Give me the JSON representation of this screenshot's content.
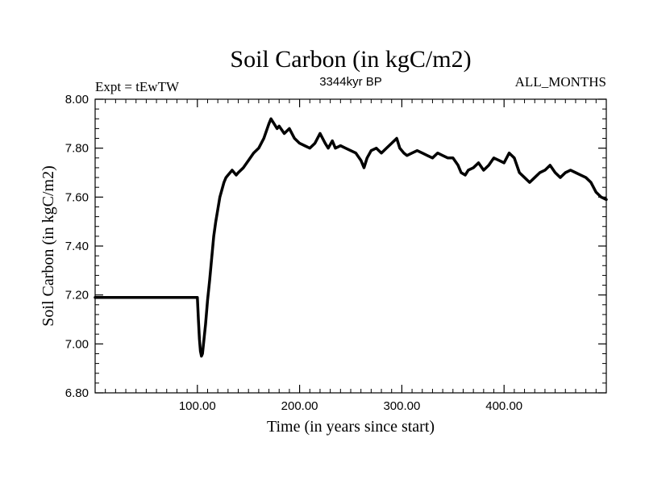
{
  "chart_data": {
    "type": "line",
    "title": "Soil Carbon (in kgC/m2)",
    "subtitle_left": "Expt = tEwTW",
    "subtitle_center": "3344kyr BP",
    "subtitle_right": "ALL_MONTHS",
    "xlabel": "Time (in years since start)",
    "ylabel": "Soil Carbon (in kgC/m2)",
    "xlim": [
      0,
      500
    ],
    "ylim": [
      6.8,
      8.0
    ],
    "x_ticks": [
      {
        "value": 100,
        "label": "100.00"
      },
      {
        "value": 200,
        "label": "200.00"
      },
      {
        "value": 300,
        "label": "300.00"
      },
      {
        "value": 400,
        "label": "400.00"
      }
    ],
    "y_ticks": [
      {
        "value": 6.8,
        "label": "6.80"
      },
      {
        "value": 7.0,
        "label": "7.00"
      },
      {
        "value": 7.2,
        "label": "7.20"
      },
      {
        "value": 7.4,
        "label": "7.40"
      },
      {
        "value": 7.6,
        "label": "7.60"
      },
      {
        "value": 7.8,
        "label": "7.80"
      },
      {
        "value": 8.0,
        "label": "8.00"
      }
    ],
    "series": [
      {
        "name": "Soil Carbon",
        "color": "#000000",
        "x": [
          0,
          99,
          100,
          101,
          102,
          103,
          104,
          105,
          106,
          108,
          110,
          112,
          114,
          116,
          118,
          120,
          122,
          124,
          126,
          128,
          130,
          132,
          134,
          136,
          138,
          140,
          145,
          150,
          155,
          160,
          165,
          170,
          172,
          175,
          178,
          180,
          185,
          190,
          195,
          200,
          205,
          210,
          215,
          220,
          225,
          228,
          232,
          235,
          240,
          245,
          250,
          255,
          260,
          263,
          266,
          270,
          275,
          280,
          285,
          290,
          295,
          298,
          302,
          305,
          310,
          315,
          320,
          325,
          330,
          335,
          340,
          345,
          350,
          355,
          358,
          362,
          365,
          370,
          375,
          380,
          385,
          390,
          395,
          400,
          405,
          410,
          415,
          420,
          425,
          430,
          435,
          440,
          445,
          450,
          455,
          460,
          465,
          470,
          475,
          480,
          485,
          490,
          495,
          500
        ],
        "values": [
          7.19,
          7.19,
          7.19,
          7.1,
          7.02,
          6.97,
          6.95,
          6.96,
          7.0,
          7.08,
          7.18,
          7.26,
          7.35,
          7.44,
          7.5,
          7.55,
          7.6,
          7.63,
          7.66,
          7.68,
          7.69,
          7.7,
          7.71,
          7.7,
          7.69,
          7.7,
          7.72,
          7.75,
          7.78,
          7.8,
          7.84,
          7.9,
          7.92,
          7.9,
          7.88,
          7.89,
          7.86,
          7.88,
          7.84,
          7.82,
          7.81,
          7.8,
          7.82,
          7.86,
          7.82,
          7.8,
          7.83,
          7.8,
          7.81,
          7.8,
          7.79,
          7.78,
          7.75,
          7.72,
          7.76,
          7.79,
          7.8,
          7.78,
          7.8,
          7.82,
          7.84,
          7.8,
          7.78,
          7.77,
          7.78,
          7.79,
          7.78,
          7.77,
          7.76,
          7.78,
          7.77,
          7.76,
          7.76,
          7.73,
          7.7,
          7.69,
          7.71,
          7.72,
          7.74,
          7.71,
          7.73,
          7.76,
          7.75,
          7.74,
          7.78,
          7.76,
          7.7,
          7.68,
          7.66,
          7.68,
          7.7,
          7.71,
          7.73,
          7.7,
          7.68,
          7.7,
          7.71,
          7.7,
          7.69,
          7.68,
          7.66,
          7.62,
          7.6,
          7.59
        ]
      }
    ]
  }
}
